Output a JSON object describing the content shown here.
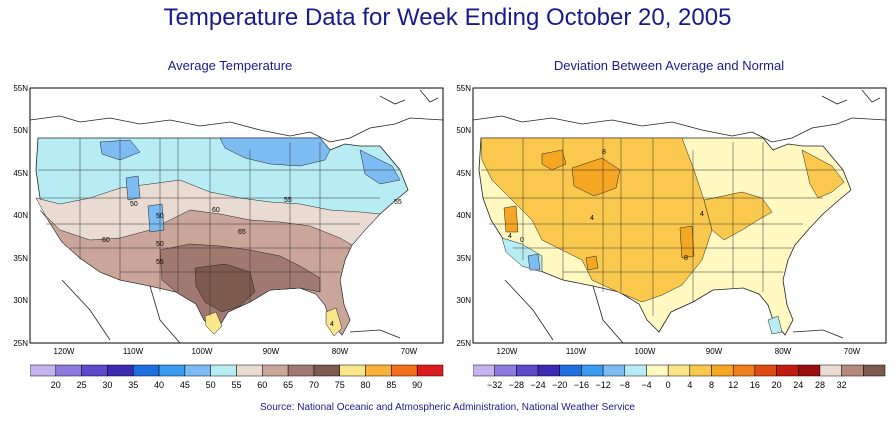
{
  "title": "Temperature Data for Week Ending October 20, 2005",
  "source": "Source:  National Oceanic and Atmospheric Administration, National Weather Service",
  "axes": {
    "lat_labels": [
      "55N",
      "50N",
      "45N",
      "40N",
      "35N",
      "30N",
      "25N"
    ],
    "lon_labels": [
      "120W",
      "110W",
      "100W",
      "90W",
      "80W",
      "70W"
    ]
  },
  "maps": [
    {
      "subtitle": "Average Temperature",
      "contour_labels": [
        "50",
        "55",
        "60",
        "60",
        "65",
        "50",
        "50",
        "55",
        "55",
        "4"
      ],
      "legend": {
        "colors": [
          "#c4b3ec",
          "#8f7be0",
          "#5e48cc",
          "#3d2ab2",
          "#1f6fe0",
          "#3b9bf0",
          "#7cbcf2",
          "#b8ecf5",
          "#eadbd2",
          "#c9a59a",
          "#a07a70",
          "#7c5a4c",
          "#f8e68a",
          "#f8b23a",
          "#f46f1c",
          "#dc1c1c"
        ],
        "labels": [
          "20",
          "25",
          "30",
          "35",
          "40",
          "45",
          "50",
          "55",
          "60",
          "65",
          "70",
          "75",
          "80",
          "85",
          "90"
        ]
      }
    },
    {
      "subtitle": "Deviation Between Average and Normal",
      "contour_labels": [
        "8",
        "4",
        "4",
        "0",
        "4",
        "8"
      ],
      "legend": {
        "colors": [
          "#c4b3ec",
          "#8f7be0",
          "#5e48cc",
          "#3d2ab2",
          "#1f6fe0",
          "#3b9bf0",
          "#7cbcf2",
          "#b8ecf5",
          "#fff8c0",
          "#fbe38a",
          "#f9c84c",
          "#f5a623",
          "#f07f1c",
          "#e04b14",
          "#c21a10",
          "#9a1010",
          "#eadbd2",
          "#b58a7c",
          "#7c5a4c"
        ],
        "labels": [
          "−32",
          "−28",
          "−24",
          "−20",
          "−16",
          "−12",
          "−8",
          "−4",
          "0",
          "4",
          "8",
          "12",
          "16",
          "20",
          "24",
          "28",
          "32"
        ]
      }
    }
  ]
}
